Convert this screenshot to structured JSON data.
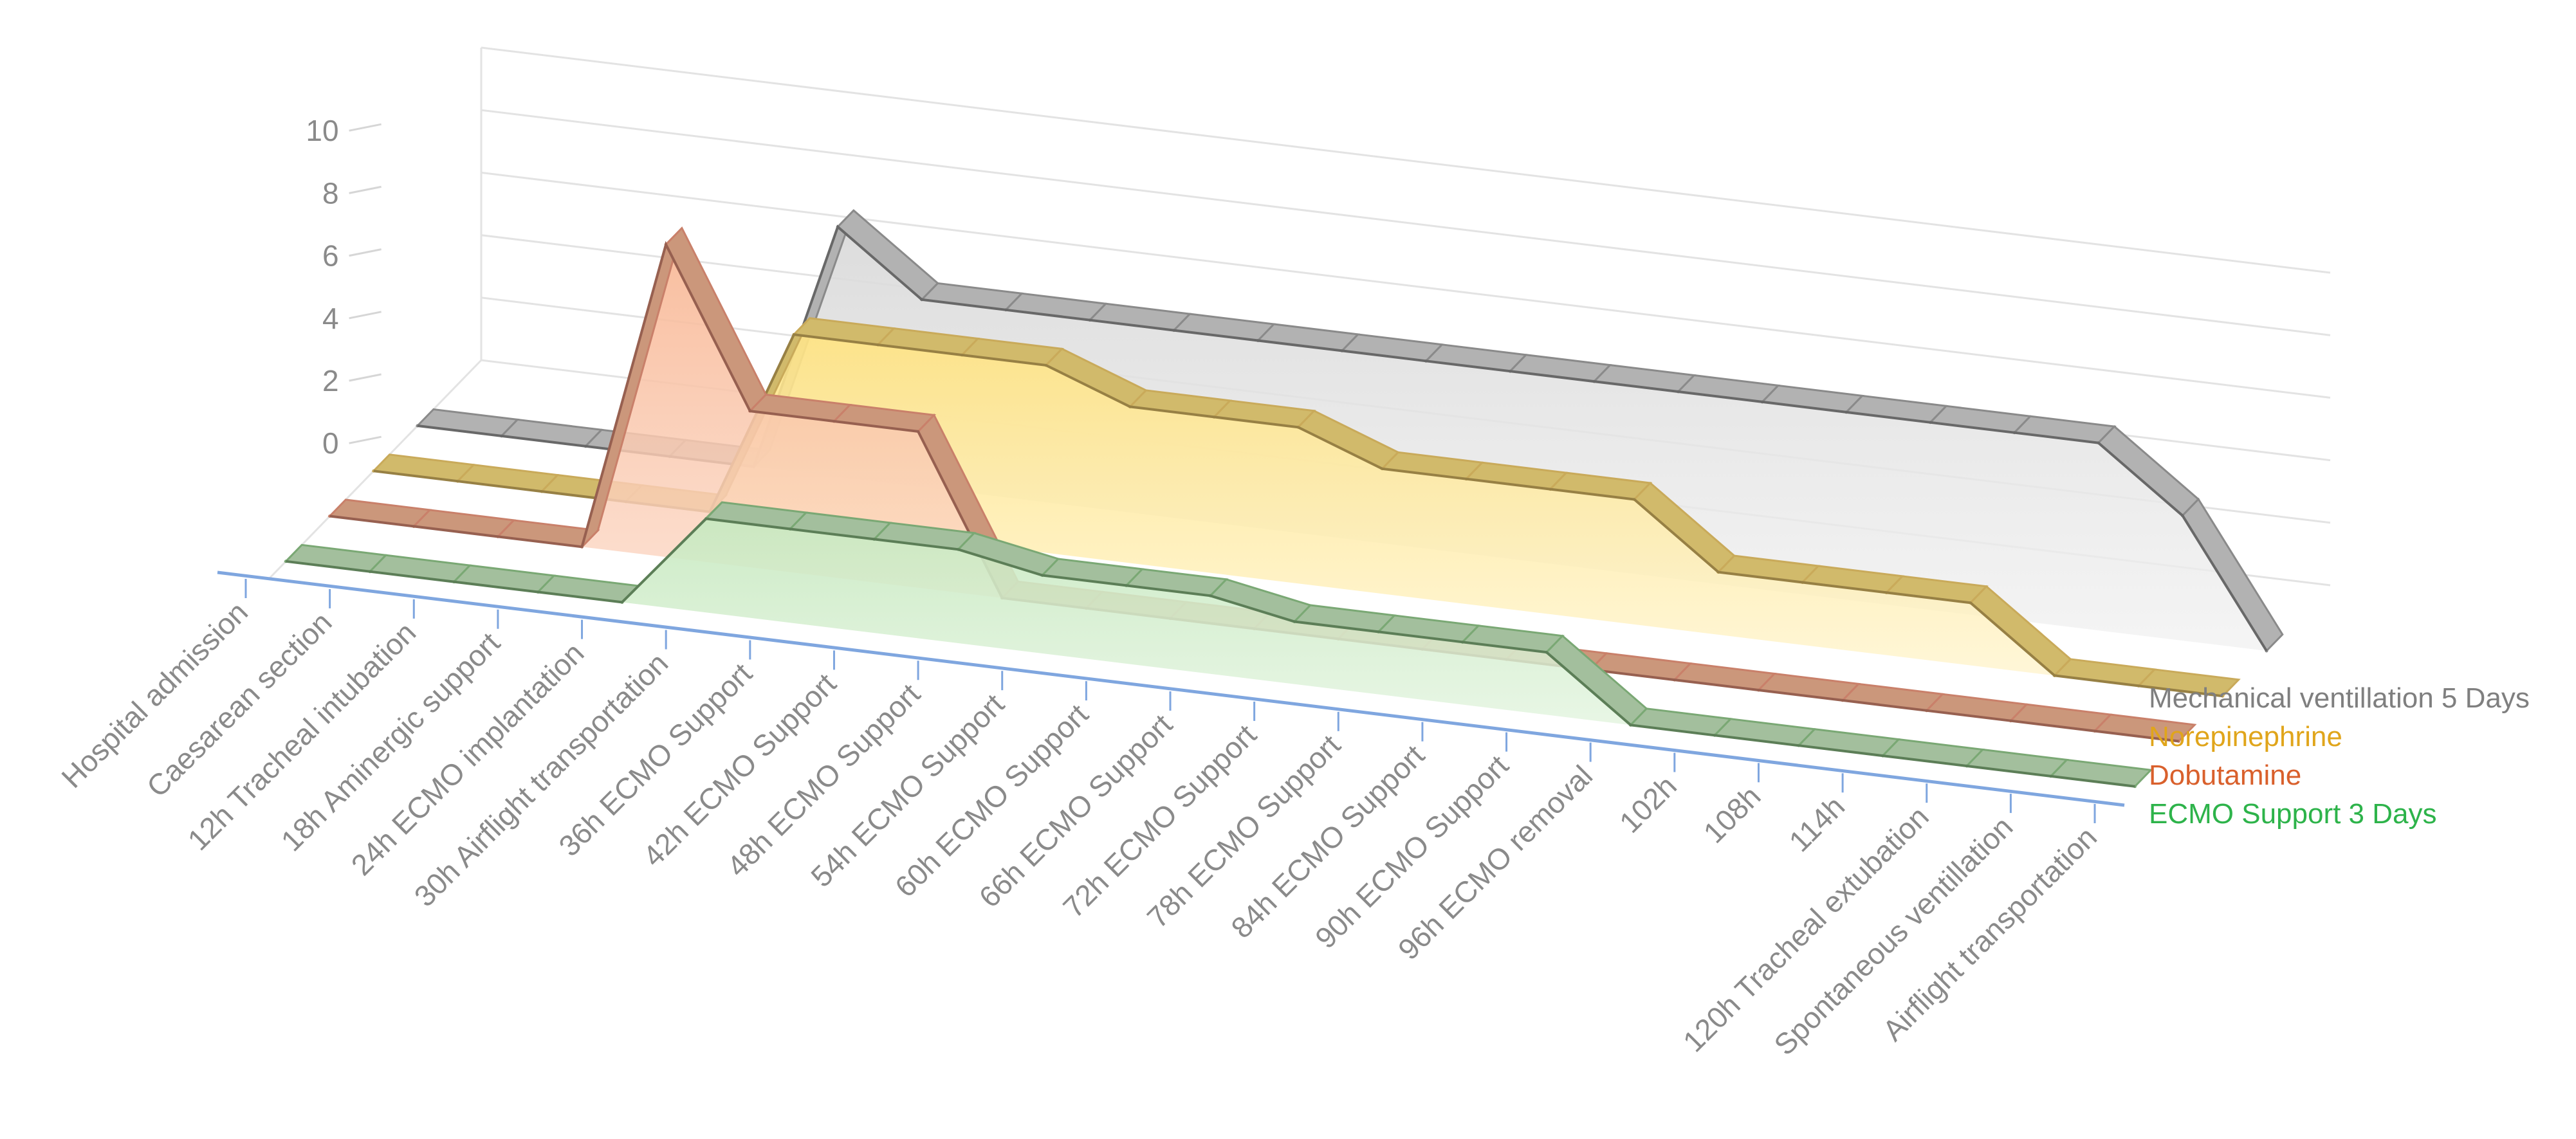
{
  "chart_data": {
    "type": "area",
    "style": "3d-area",
    "title": "",
    "xlabel": "",
    "ylabel": "",
    "ylim": [
      0,
      10
    ],
    "y_ticks": [
      0,
      2,
      4,
      6,
      8,
      10
    ],
    "grid": true,
    "legend_position": "right",
    "categories": [
      "Hospital admission",
      "Caesarean section",
      "12h Tracheal intubation",
      "18h Aminergic support",
      "24h ECMO implantation",
      "30h Airflight transportation",
      "36h ECMO Support",
      "42h ECMO Support",
      "48h ECMO Support",
      "54h ECMO Support",
      "60h ECMO Support",
      "66h ECMO Support",
      "72h ECMO Support",
      "78h ECMO Support",
      "84h ECMO Support",
      "90h ECMO Support",
      "96h ECMO removal",
      "102h",
      "108h",
      "114h",
      "120h Tracheal extubation",
      "Spontaneous ventillation",
      "Airflight transportation"
    ],
    "series": [
      {
        "name": "ECMO Support 3 Days",
        "color": "#7aa874",
        "label_color": "#2db34a",
        "fill_top": "#c7e9c0",
        "fill_bottom": "#eaf7e7",
        "values": [
          0,
          0,
          0,
          0,
          0,
          3,
          3,
          3,
          3,
          2.5,
          2.5,
          2.5,
          2,
          2,
          2,
          2,
          0,
          0,
          0,
          0,
          0,
          0,
          0
        ]
      },
      {
        "name": "Dobutamine",
        "color": "#c9806a",
        "label_color": "#d9602c",
        "fill_top": "#f8b896",
        "fill_bottom": "#fde6da",
        "values": [
          0,
          0,
          0,
          0,
          10,
          5,
          5,
          5,
          0,
          0,
          0,
          0,
          0,
          0,
          0,
          0,
          0,
          0,
          0,
          0,
          0,
          0,
          0
        ]
      },
      {
        "name": "Norepinephrine",
        "color": "#c9aa5a",
        "label_color": "#e0a51b",
        "fill_top": "#ffe382",
        "fill_bottom": "#fff5d0",
        "values": [
          0,
          0,
          0,
          0,
          0,
          6,
          6,
          6,
          6,
          5,
          5,
          5,
          4,
          4,
          4,
          4,
          2,
          2,
          2,
          2,
          0,
          0,
          0
        ]
      },
      {
        "name": "Mechanical ventillation 5 Days",
        "color": "#8a8a8a",
        "label_color": "#7f7f7f",
        "fill_top": "#d9d9d9",
        "fill_bottom": "#f1f1f1",
        "values": [
          0,
          0,
          0,
          0,
          0,
          8,
          6,
          6,
          6,
          6,
          6,
          6,
          6,
          6,
          6,
          6,
          6,
          6,
          6,
          6,
          6,
          4,
          0
        ]
      }
    ]
  }
}
